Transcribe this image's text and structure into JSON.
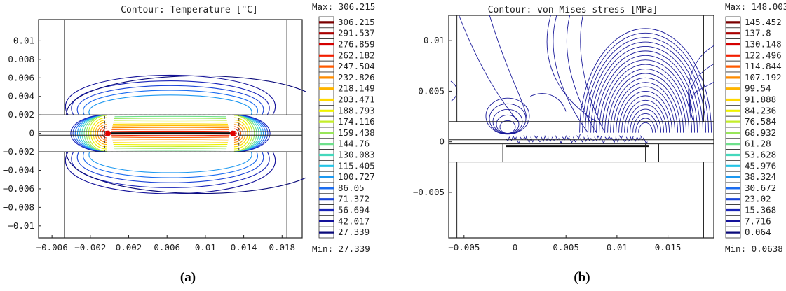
{
  "panels": [
    {
      "caption": "(a)",
      "chart_data": {
        "type": "contour",
        "title": "Contour: Temperature [°C]",
        "quantity": "Temperature",
        "unit": "°C",
        "legend_max_label": "Max: 306.215",
        "legend_min_label": "Min: 27.339",
        "max": 306.215,
        "min": 27.339,
        "legend_levels": [
          "306.215",
          "291.537",
          "276.859",
          "262.182",
          "247.504",
          "232.826",
          "218.149",
          "203.471",
          "188.793",
          "174.116",
          "159.438",
          "144.76",
          "130.083",
          "115.405",
          "100.727",
          "86.05",
          "71.372",
          "56.694",
          "42.017",
          "27.339"
        ],
        "legend_colors": [
          "#7a0000",
          "#a80000",
          "#d40000",
          "#f21e00",
          "#ff5a00",
          "#ff8c00",
          "#ffb400",
          "#ffd800",
          "#eef200",
          "#c4ee2a",
          "#98e65a",
          "#6ee08c",
          "#44d8bc",
          "#24c4e6",
          "#1c98f0",
          "#1a6cf0",
          "#1a44d8",
          "#1a24b8",
          "#14129a",
          "#0a0a7a"
        ],
        "x_ticks": [
          "−0.006",
          "−0.002",
          "0.002",
          "0.006",
          "0.01",
          "0.014",
          "0.018"
        ],
        "x_tick_values": [
          -0.006,
          -0.002,
          0.002,
          0.006,
          0.01,
          0.014,
          0.018
        ],
        "y_ticks": [
          "0.01",
          "0.008",
          "0.006",
          "0.004",
          "0.002",
          "0",
          "−0.002",
          "−0.004",
          "−0.006",
          "−0.008",
          "−0.01"
        ],
        "y_tick_values": [
          0.01,
          0.008,
          0.006,
          0.004,
          0.002,
          0,
          -0.002,
          -0.004,
          -0.006,
          -0.008,
          -0.01
        ],
        "xlim": [
          -0.0074,
          0.0201
        ],
        "ylim": [
          -0.0113,
          0.0123
        ],
        "geometry": {
          "upper_plate_y": 0.002,
          "lower_plate_y": -0.002,
          "gap_half": 0.0002,
          "hot_zone_x": [
            -0.0005,
            0.0135
          ],
          "heat_line_x": [
            -0.0003,
            0.013
          ]
        }
      }
    },
    {
      "caption": "(b)",
      "chart_data": {
        "type": "contour",
        "title": "Contour: von Mises stress [MPa]",
        "quantity": "von Mises stress",
        "unit": "MPa",
        "legend_max_label": "Max: 148.003",
        "legend_min_label": "Min: 0.0638",
        "max": 148.003,
        "min": 0.0638,
        "legend_levels": [
          "145.452",
          "137.8",
          "130.148",
          "122.496",
          "114.844",
          "107.192",
          "99.54",
          "91.888",
          "84.236",
          "76.584",
          "68.932",
          "61.28",
          "53.628",
          "45.976",
          "38.324",
          "30.672",
          "23.02",
          "15.368",
          "7.716",
          "0.064"
        ],
        "legend_colors": [
          "#7a0000",
          "#a80000",
          "#d40000",
          "#f21e00",
          "#ff5a00",
          "#ff8c00",
          "#ffb400",
          "#ffd800",
          "#eef200",
          "#c4ee2a",
          "#98e65a",
          "#6ee08c",
          "#44d8bc",
          "#24c4e6",
          "#1c98f0",
          "#1a6cf0",
          "#1a44d8",
          "#1a24b8",
          "#14129a",
          "#0a0a7a"
        ],
        "x_ticks": [
          "−0.005",
          "0",
          "0.005",
          "0.01",
          "0.015"
        ],
        "x_tick_values": [
          -0.005,
          0,
          0.005,
          0.01,
          0.015
        ],
        "y_ticks": [
          "0.01",
          "0.005",
          "0",
          "−0.005"
        ],
        "y_tick_values": [
          0.01,
          0.005,
          0,
          -0.005
        ],
        "xlim": [
          -0.0065,
          0.0195
        ],
        "ylim": [
          -0.0095,
          0.0125
        ],
        "geometry": {
          "upper_plate_y": 0.002,
          "lower_plate_y": -0.002,
          "gap_half": 0.0002,
          "hot_zone_x": [
            -0.0012,
            0.0133
          ],
          "stress_peak_x": 0.0128
        }
      }
    }
  ]
}
